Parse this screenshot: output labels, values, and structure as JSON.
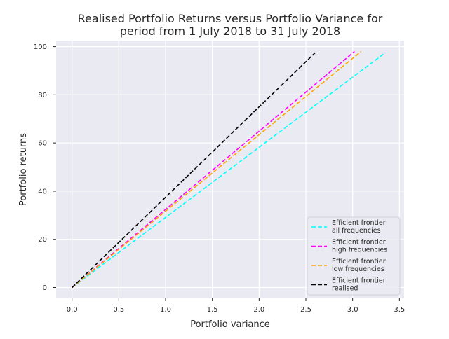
{
  "chart_data": {
    "type": "line",
    "title_lines": [
      "Realised Portfolio Returns versus Portfolio Variance for",
      "period from 1 July 2018 to 31 July 2018"
    ],
    "xlabel": "Portfolio variance",
    "ylabel": "Portfolio returns",
    "xlim": [
      -0.17,
      3.55
    ],
    "ylim": [
      -4.5,
      102.5
    ],
    "xticks": [
      0.0,
      0.5,
      1.0,
      1.5,
      2.0,
      2.5,
      3.0,
      3.5
    ],
    "xtick_labels": [
      "0.0",
      "0.5",
      "1.0",
      "1.5",
      "2.0",
      "2.5",
      "3.0",
      "3.5"
    ],
    "yticks": [
      0,
      20,
      40,
      60,
      80,
      100
    ],
    "ytick_labels": [
      "0",
      "20",
      "40",
      "60",
      "80",
      "100"
    ],
    "grid": true,
    "background": "#eaeaf2",
    "legend_position": "lower-right",
    "series": [
      {
        "name": "Efficient frontier\nall frequencies",
        "color": "#00ffff",
        "dash": "dashed",
        "x": [
          0.0,
          3.35
        ],
        "y": [
          0.0,
          97.5
        ]
      },
      {
        "name": "Efficient frontier\nhigh frequencies",
        "color": "#ff00ff",
        "dash": "dashed",
        "x": [
          0.0,
          3.02
        ],
        "y": [
          0.0,
          98.0
        ]
      },
      {
        "name": "Efficient frontier\nlow frequencies",
        "color": "#ffa500",
        "dash": "dashed",
        "x": [
          0.0,
          3.09
        ],
        "y": [
          0.0,
          98.0
        ]
      },
      {
        "name": "Efficient frontier\nrealised",
        "color": "#000000",
        "dash": "dashed",
        "x": [
          0.0,
          2.6
        ],
        "y": [
          0.0,
          97.5
        ]
      }
    ]
  }
}
